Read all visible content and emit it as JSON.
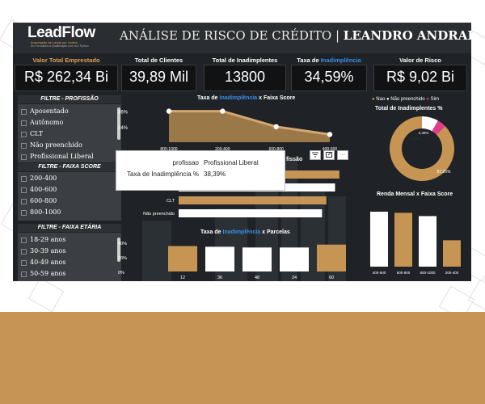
{
  "brand": {
    "name": "LeadFlow",
    "tagline": "Automação de Leads por Lixeira",
    "subtagline": "Do Formulário à Qualificação com Ia e Python"
  },
  "header": {
    "title_main": "ANÁLISE DE RISCO DE CRÉDITO |",
    "title_author": "LEANDRO ANDRADE"
  },
  "kpis": [
    {
      "label": "Valor Total Emprestado",
      "value": "R$ 262,34 Bi",
      "label_color": "#d9a354"
    },
    {
      "label": "Total de Clientes",
      "value": "39,89 Mil"
    },
    {
      "label": "Total de Inadimplentes",
      "value": "13800"
    },
    {
      "label_prefix": "Taxa de ",
      "label_accent": "Inadimplência",
      "value": "34,59%"
    },
    {
      "label": "Valor de Risco",
      "value": "R$ 9,02 Bi"
    }
  ],
  "filters": {
    "profissao": {
      "title": "FILTRE - PROFISSÃO",
      "items": [
        "Aposentado",
        "Autônomo",
        "CLT",
        "Não preenchido",
        "Profissional Liberal"
      ]
    },
    "faixa_score": {
      "title": "FILTRE - FAIXA SCORE",
      "items": [
        "200-400",
        "400-600",
        "600-800",
        "800-1000"
      ]
    },
    "faixa_etaria": {
      "title": "FILTRE - FAIXA ETÁRIA",
      "items": [
        "18-29 anos",
        "30-39 anos",
        "40-49 anos",
        "50-59 anos"
      ]
    }
  },
  "charts": {
    "score_line": {
      "title_prefix": "Taxa de ",
      "title_accent": "Inadimplência",
      "title_suffix": " x Faixa Score"
    },
    "profissao_bar": {
      "title_suffix": "fissão"
    },
    "parcelas": {
      "title_prefix": "Taxa de ",
      "title_accent": "Inadimplência",
      "title_suffix": " x Parcelas"
    },
    "donut": {
      "legend": [
        "Nao",
        "Não preenchido",
        "Sim"
      ],
      "title": "Total de Inadimplentes %"
    },
    "renda": {
      "title": "Renda Mensal x Faixa Score"
    }
  },
  "tooltip": {
    "rows": [
      {
        "key": "profissao",
        "value": "Profissional Liberal"
      },
      {
        "key": "Taxa de Inadimplência %",
        "value": "38,39%"
      }
    ]
  },
  "toolbar": {
    "filter_icon": "filter-icon",
    "focus_icon": "focus-mode-icon",
    "more_label": "···"
  },
  "colors": {
    "accent": "#c69553",
    "accent_blue": "#3a8ee6",
    "pink": "#e23d8a",
    "bg": "#1f2226"
  },
  "chart_data": [
    {
      "type": "area",
      "title": "Taxa de Inadimplência x Faixa Score",
      "categories": [
        "800-1000",
        "200-400",
        "600-800",
        "400-600"
      ],
      "values": [
        36,
        36,
        34,
        33
      ],
      "yticks": [
        "36%",
        "34%"
      ],
      "ylim": [
        32,
        37
      ]
    },
    {
      "type": "bar",
      "orientation": "horizontal",
      "categories": [
        "Aposentado",
        "Autônomo",
        "CLT",
        "Não preenchido"
      ],
      "values": [
        37,
        36,
        34,
        33
      ]
    },
    {
      "type": "bar",
      "title": "Taxa de Inadimplência x Parcelas",
      "categories": [
        "12",
        "36",
        "48",
        "24",
        "60"
      ],
      "values": [
        35,
        34,
        33,
        33,
        37
      ],
      "highlight": [
        true,
        false,
        false,
        false,
        true
      ],
      "yticks": [
        "40%",
        "20%",
        "0%"
      ],
      "ylim": [
        0,
        40
      ]
    },
    {
      "type": "pie",
      "title": "Total de Inadimplentes %",
      "labels": [
        "Nao",
        "Não preenchido",
        "Sim"
      ],
      "values": [
        87.26,
        8.29,
        4.46
      ],
      "label_texts": [
        "87,26%",
        "8,29%",
        "4,46%"
      ]
    },
    {
      "type": "bar",
      "title": "Renda Mensal x Faixa Score",
      "categories": [
        "400-600",
        "600-800",
        "800-1000",
        "200-400"
      ],
      "values": [
        100,
        98,
        92,
        48
      ],
      "highlight": [
        false,
        true,
        false,
        true
      ]
    }
  ]
}
